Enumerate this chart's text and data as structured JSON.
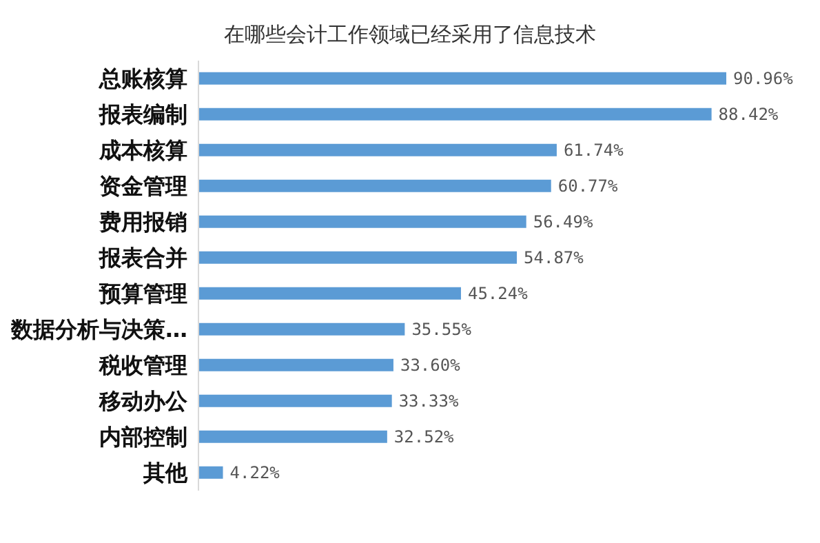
{
  "chart_data": {
    "type": "bar",
    "orientation": "horizontal",
    "title": "在哪些会计工作领域已经采用了信息技术",
    "categories": [
      "总账核算",
      "报表编制",
      "成本核算",
      "资金管理",
      "费用报销",
      "报表合并",
      "预算管理",
      "数据分析与决策…",
      "税收管理",
      "移动办公",
      "内部控制",
      "其他"
    ],
    "values": [
      90.96,
      88.42,
      61.74,
      60.77,
      56.49,
      54.87,
      45.24,
      35.55,
      33.6,
      33.33,
      32.52,
      4.22
    ],
    "value_labels": [
      "90.96%",
      "88.42%",
      "61.74%",
      "60.77%",
      "56.49%",
      "54.87%",
      "45.24%",
      "35.55%",
      "33.60%",
      "33.33%",
      "32.52%",
      "4.22%"
    ],
    "color": "#5b9bd5",
    "tick_labels": "y"
  }
}
